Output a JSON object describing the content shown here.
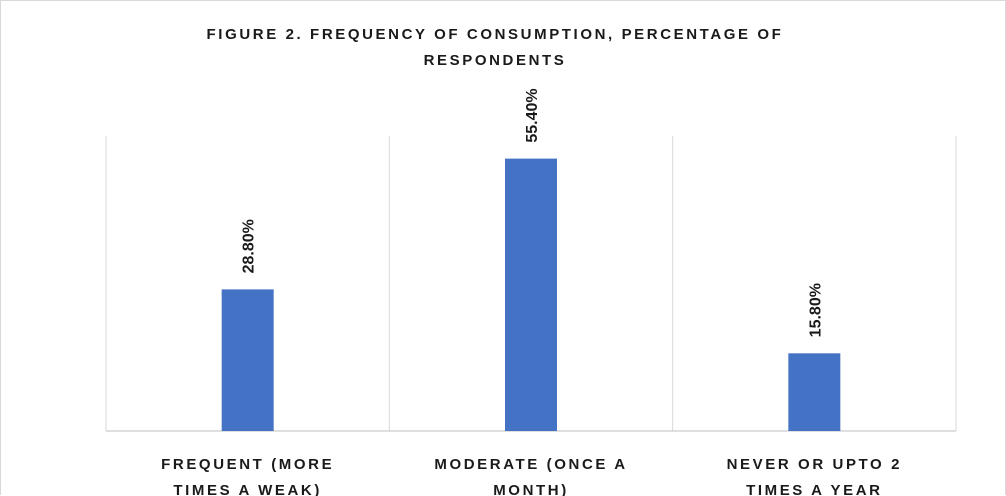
{
  "chart_data": {
    "type": "bar",
    "title_lines": [
      "FIGURE 2. FREQUENCY OF CONSUMPTION, PERCENTAGE OF",
      "RESPONDENTS"
    ],
    "categories": [
      [
        "FREQUENT (MORE",
        "TIMES A WEAK)"
      ],
      [
        "MODERATE (ONCE A",
        "MONTH)"
      ],
      [
        "NEVER OR UPTO 2",
        "TIMES A YEAR"
      ]
    ],
    "values": [
      28.8,
      55.4,
      15.8
    ],
    "data_labels": [
      "28.80%",
      "55.40%",
      "15.80%"
    ],
    "ylim": [
      0,
      60
    ],
    "bar_color": "#4472c4",
    "grid": "vertical category separators",
    "legend": "none"
  }
}
